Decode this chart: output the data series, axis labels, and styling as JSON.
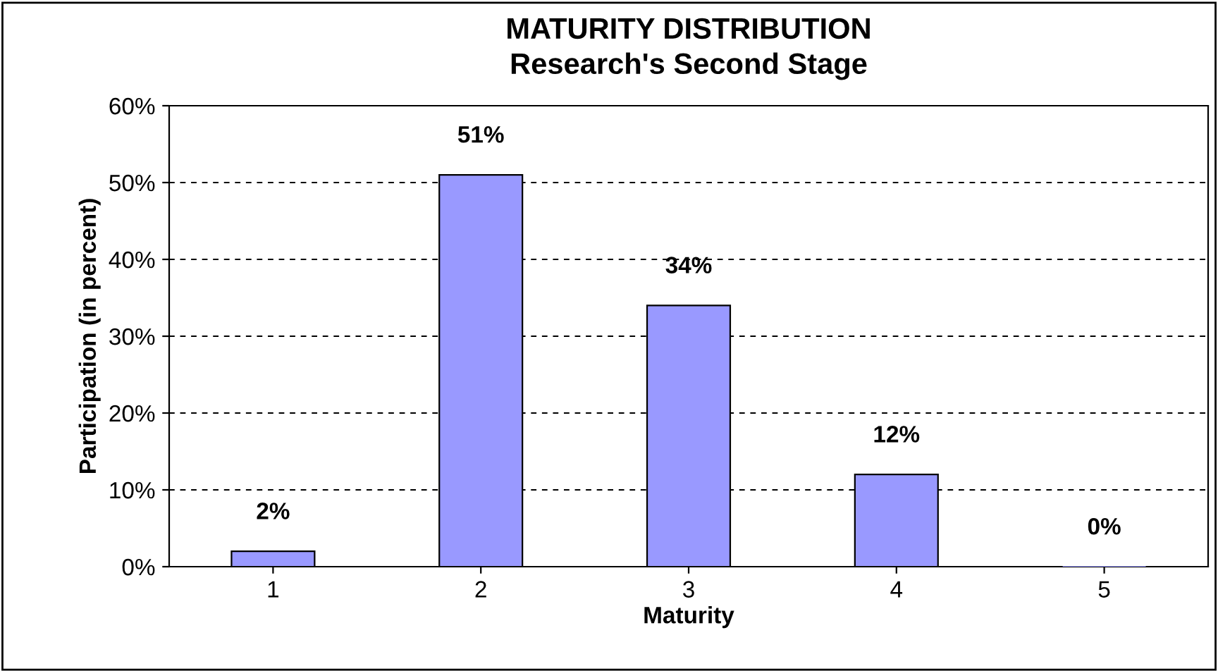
{
  "chart_data": {
    "type": "bar",
    "title": "MATURITY DISTRIBUTION",
    "subtitle": "Research's Second Stage",
    "xlabel": "Maturity",
    "ylabel": "Participation (in percent)",
    "categories": [
      "1",
      "2",
      "3",
      "4",
      "5"
    ],
    "values": [
      2,
      51,
      34,
      12,
      0
    ],
    "value_labels": [
      "2%",
      "51%",
      "34%",
      "12%",
      "0%"
    ],
    "color": "#9999ff",
    "ylim": [
      0,
      60
    ],
    "yticks": [
      {
        "value": 0,
        "label": "0%"
      },
      {
        "value": 10,
        "label": "10%"
      },
      {
        "value": 20,
        "label": "20%"
      },
      {
        "value": 30,
        "label": "30%"
      },
      {
        "value": 40,
        "label": "40%"
      },
      {
        "value": 50,
        "label": "50%"
      },
      {
        "value": 60,
        "label": "60%"
      }
    ],
    "grid": "y",
    "legend": false
  }
}
